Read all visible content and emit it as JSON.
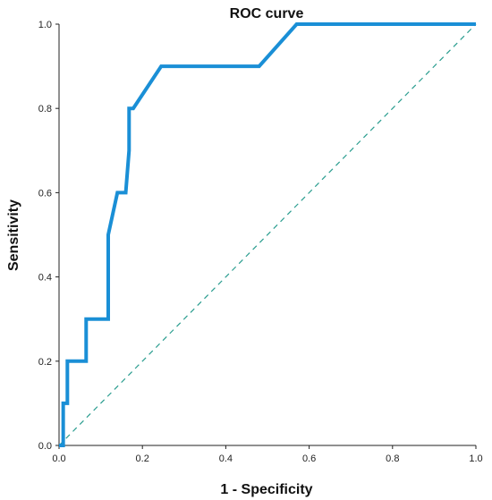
{
  "chart_data": {
    "type": "line",
    "title": "ROC curve",
    "xlabel": "1 - Specificity",
    "ylabel": "Sensitivity",
    "xlim": [
      0,
      1
    ],
    "ylim": [
      0,
      1
    ],
    "x_ticks": [
      "0.0",
      "0.2",
      "0.4",
      "0.6",
      "0.8",
      "1.0"
    ],
    "y_ticks": [
      "0.0",
      "0.2",
      "0.4",
      "0.6",
      "0.8",
      "1.0"
    ],
    "grid": false,
    "series": [
      {
        "color": "#1a8fd6",
        "style": "solid",
        "x": [
          0.0,
          0.01,
          0.01,
          0.02,
          0.02,
          0.065,
          0.065,
          0.118,
          0.118,
          0.14,
          0.16,
          0.168,
          0.168,
          0.178,
          0.245,
          0.48,
          0.57,
          1.0
        ],
        "y": [
          0.0,
          0.0,
          0.1,
          0.1,
          0.2,
          0.2,
          0.3,
          0.3,
          0.5,
          0.6,
          0.6,
          0.7,
          0.8,
          0.8,
          0.9,
          0.9,
          1.0,
          1.0
        ]
      },
      {
        "color": "#2a9d8f",
        "style": "dashed",
        "x": [
          0,
          1
        ],
        "y": [
          0,
          1
        ]
      }
    ]
  }
}
